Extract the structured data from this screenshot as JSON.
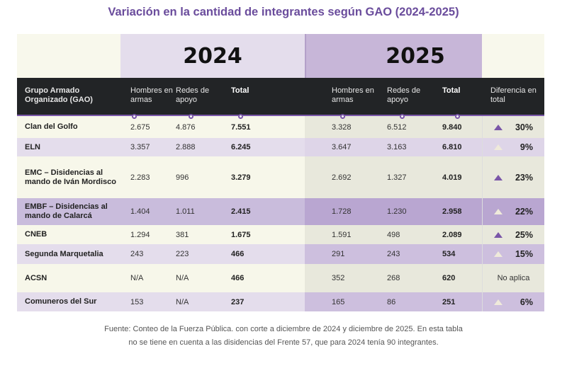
{
  "title": "Variación en la cantidad de integrantes según GAO (2024-2025)",
  "years": [
    "2024",
    "2025"
  ],
  "headers": {
    "gao": "Grupo Armado Organizado (GAO)",
    "hombres": "Hombres en armas",
    "redes": "Redes de apoyo",
    "total": "Total",
    "diferencia": "Diferencia en total"
  },
  "colors": {
    "accent": "#7a56a8",
    "increase_strong": "#7a56a8",
    "increase_pale": "#efeada"
  },
  "rows": [
    {
      "gao": "Clan del Golfo",
      "h24": "2.675",
      "r24": "4.876",
      "t24": "7.551",
      "h25": "3.328",
      "r25": "6.512",
      "t25": "9.840",
      "diff": "30%",
      "icon": "triangle-up-purple"
    },
    {
      "gao": "ELN",
      "h24": "3.357",
      "r24": "2.888",
      "t24": "6.245",
      "h25": "3.647",
      "r25": "3.163",
      "t25": "6.810",
      "diff": "9%",
      "icon": "triangle-up-pale"
    },
    {
      "gao": "EMC – Disidencias al mando de Iván Mordisco",
      "h24": "2.283",
      "r24": "996",
      "t24": "3.279",
      "h25": "2.692",
      "r25": "1.327",
      "t25": "4.019",
      "diff": "23%",
      "icon": "triangle-up-purple"
    },
    {
      "gao": "EMBF – Disidencias al mando de Calarcá",
      "h24": "1.404",
      "r24": "1.011",
      "t24": "2.415",
      "h25": "1.728",
      "r25": "1.230",
      "t25": "2.958",
      "diff": "22%",
      "icon": "triangle-up-pale"
    },
    {
      "gao": "CNEB",
      "h24": "1.294",
      "r24": "381",
      "t24": "1.675",
      "h25": "1.591",
      "r25": "498",
      "t25": "2.089",
      "diff": "25%",
      "icon": "triangle-up-purple"
    },
    {
      "gao": "Segunda Marquetalia",
      "h24": "243",
      "r24": "223",
      "t24": "466",
      "h25": "291",
      "r25": "243",
      "t25": "534",
      "diff": "15%",
      "icon": "triangle-up-pale"
    },
    {
      "gao": "ACSN",
      "h24": "N/A",
      "r24": "N/A",
      "t24": "466",
      "h25": "352",
      "r25": "268",
      "t25": "620",
      "diff": "No aplica",
      "icon": ""
    },
    {
      "gao": "Comuneros del Sur",
      "h24": "153",
      "r24": "N/A",
      "t24": "237",
      "h25": "165",
      "r25": "86",
      "t25": "251",
      "diff": "6%",
      "icon": "triangle-up-pale"
    }
  ],
  "footnote": "Fuente: Conteo de la Fuerza Pública. con corte a diciembre de 2024 y diciembre de 2025. En esta tabla no se tiene en cuenta a las disidencias del Frente 57, que para 2024 tenía 90 integrantes."
}
